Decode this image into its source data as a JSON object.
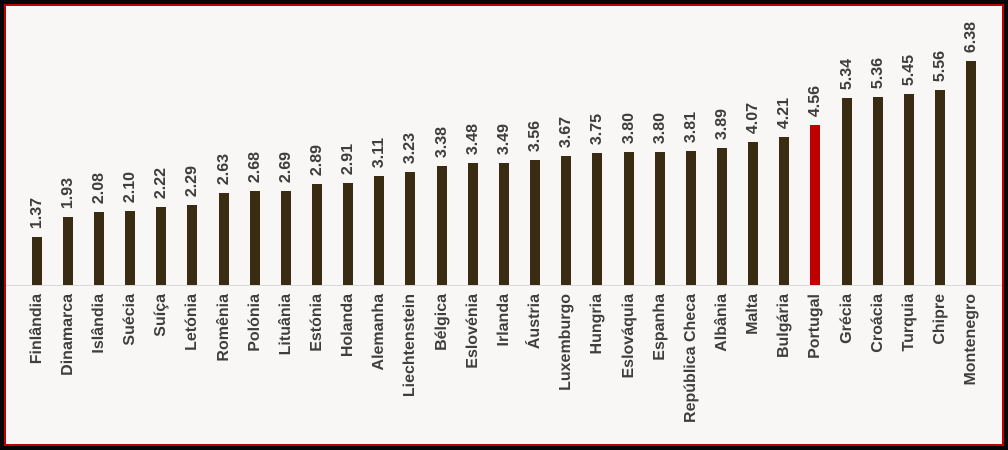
{
  "frame": {
    "outer_border_color": "#060606",
    "inner_border_color": "#c00000",
    "background": "#f8f7f5"
  },
  "chart_data": {
    "type": "bar",
    "title": "",
    "xlabel": "",
    "ylabel": "",
    "ylim": [
      0,
      7
    ],
    "grid": false,
    "legend_position": "none",
    "orientation": "vertical",
    "value_labels_shown": true,
    "value_label_decimals": 2,
    "label_rotation_degrees": 90,
    "categories": [
      "Finlândia",
      "Dinamarca",
      "Islândia",
      "Suécia",
      "Suíça",
      "Letónia",
      "Romênia",
      "Polónia",
      "Lituânia",
      "Estónia",
      "Holanda",
      "Alemanha",
      "Liechtenstein",
      "Bélgica",
      "Eslovénia",
      "Irlanda",
      "Áustria",
      "Luxemburgo",
      "Hungria",
      "Eslováquia",
      "Espanha",
      "República Checa",
      "Albânia",
      "Malta",
      "Bulgária",
      "Portugal",
      "Grécia",
      "Croácia",
      "Turquia",
      "Chipre",
      "Montenegro"
    ],
    "values": [
      1.37,
      1.93,
      2.08,
      2.1,
      2.22,
      2.29,
      2.63,
      2.68,
      2.69,
      2.89,
      2.91,
      3.11,
      3.23,
      3.38,
      3.48,
      3.49,
      3.56,
      3.67,
      3.75,
      3.8,
      3.8,
      3.81,
      3.89,
      4.07,
      4.21,
      4.56,
      5.34,
      5.36,
      5.45,
      5.56,
      6.38
    ],
    "bar_color": "#3a2c12",
    "highlight": {
      "category": "Portugal",
      "color": "#c00000"
    },
    "value_text_color": "#3f3f3f",
    "axis_label_color": "#3f3f3f",
    "axis_line_color": "#d9d9d9"
  }
}
